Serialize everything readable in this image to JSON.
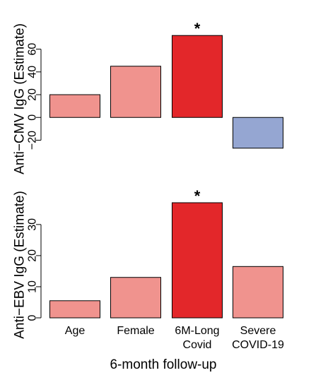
{
  "chart_data": [
    {
      "type": "bar",
      "ylabel": "Anti−CMV IgG (Estimate)",
      "ylim": [
        -29,
        74
      ],
      "yticks": [
        "−20",
        "0",
        "20",
        "40",
        "60"
      ],
      "ytick_values": [
        -20,
        0,
        20,
        40,
        60
      ],
      "categories": [
        "Age",
        "Female",
        "6M-Long Covid",
        "Severe COVID-19"
      ],
      "values": [
        20,
        45,
        72,
        -27
      ],
      "colors": [
        "#f0938e",
        "#f0938e",
        "#e3272a",
        "#95a6d2"
      ],
      "annotations": [
        "",
        "",
        "*",
        ""
      ]
    },
    {
      "type": "bar",
      "ylabel": "Anti−EBV IgG (Estimate)",
      "ylim": [
        0,
        37
      ],
      "yticks": [
        "0",
        "10",
        "20",
        "30"
      ],
      "ytick_values": [
        0,
        10,
        20,
        30
      ],
      "categories": [
        "Age",
        "Female",
        "6M-Long Covid",
        "Severe COVID-19"
      ],
      "category_lines": [
        [
          "Age"
        ],
        [
          "Female"
        ],
        [
          "6M-Long",
          "Covid"
        ],
        [
          "Severe",
          "COVID-19"
        ]
      ],
      "values": [
        5.5,
        13,
        37,
        16.5
      ],
      "colors": [
        "#f0938e",
        "#f0938e",
        "#e3272a",
        "#f0938e"
      ],
      "annotations": [
        "",
        "",
        "*",
        ""
      ],
      "xlabel": "6-month follow-up"
    }
  ]
}
